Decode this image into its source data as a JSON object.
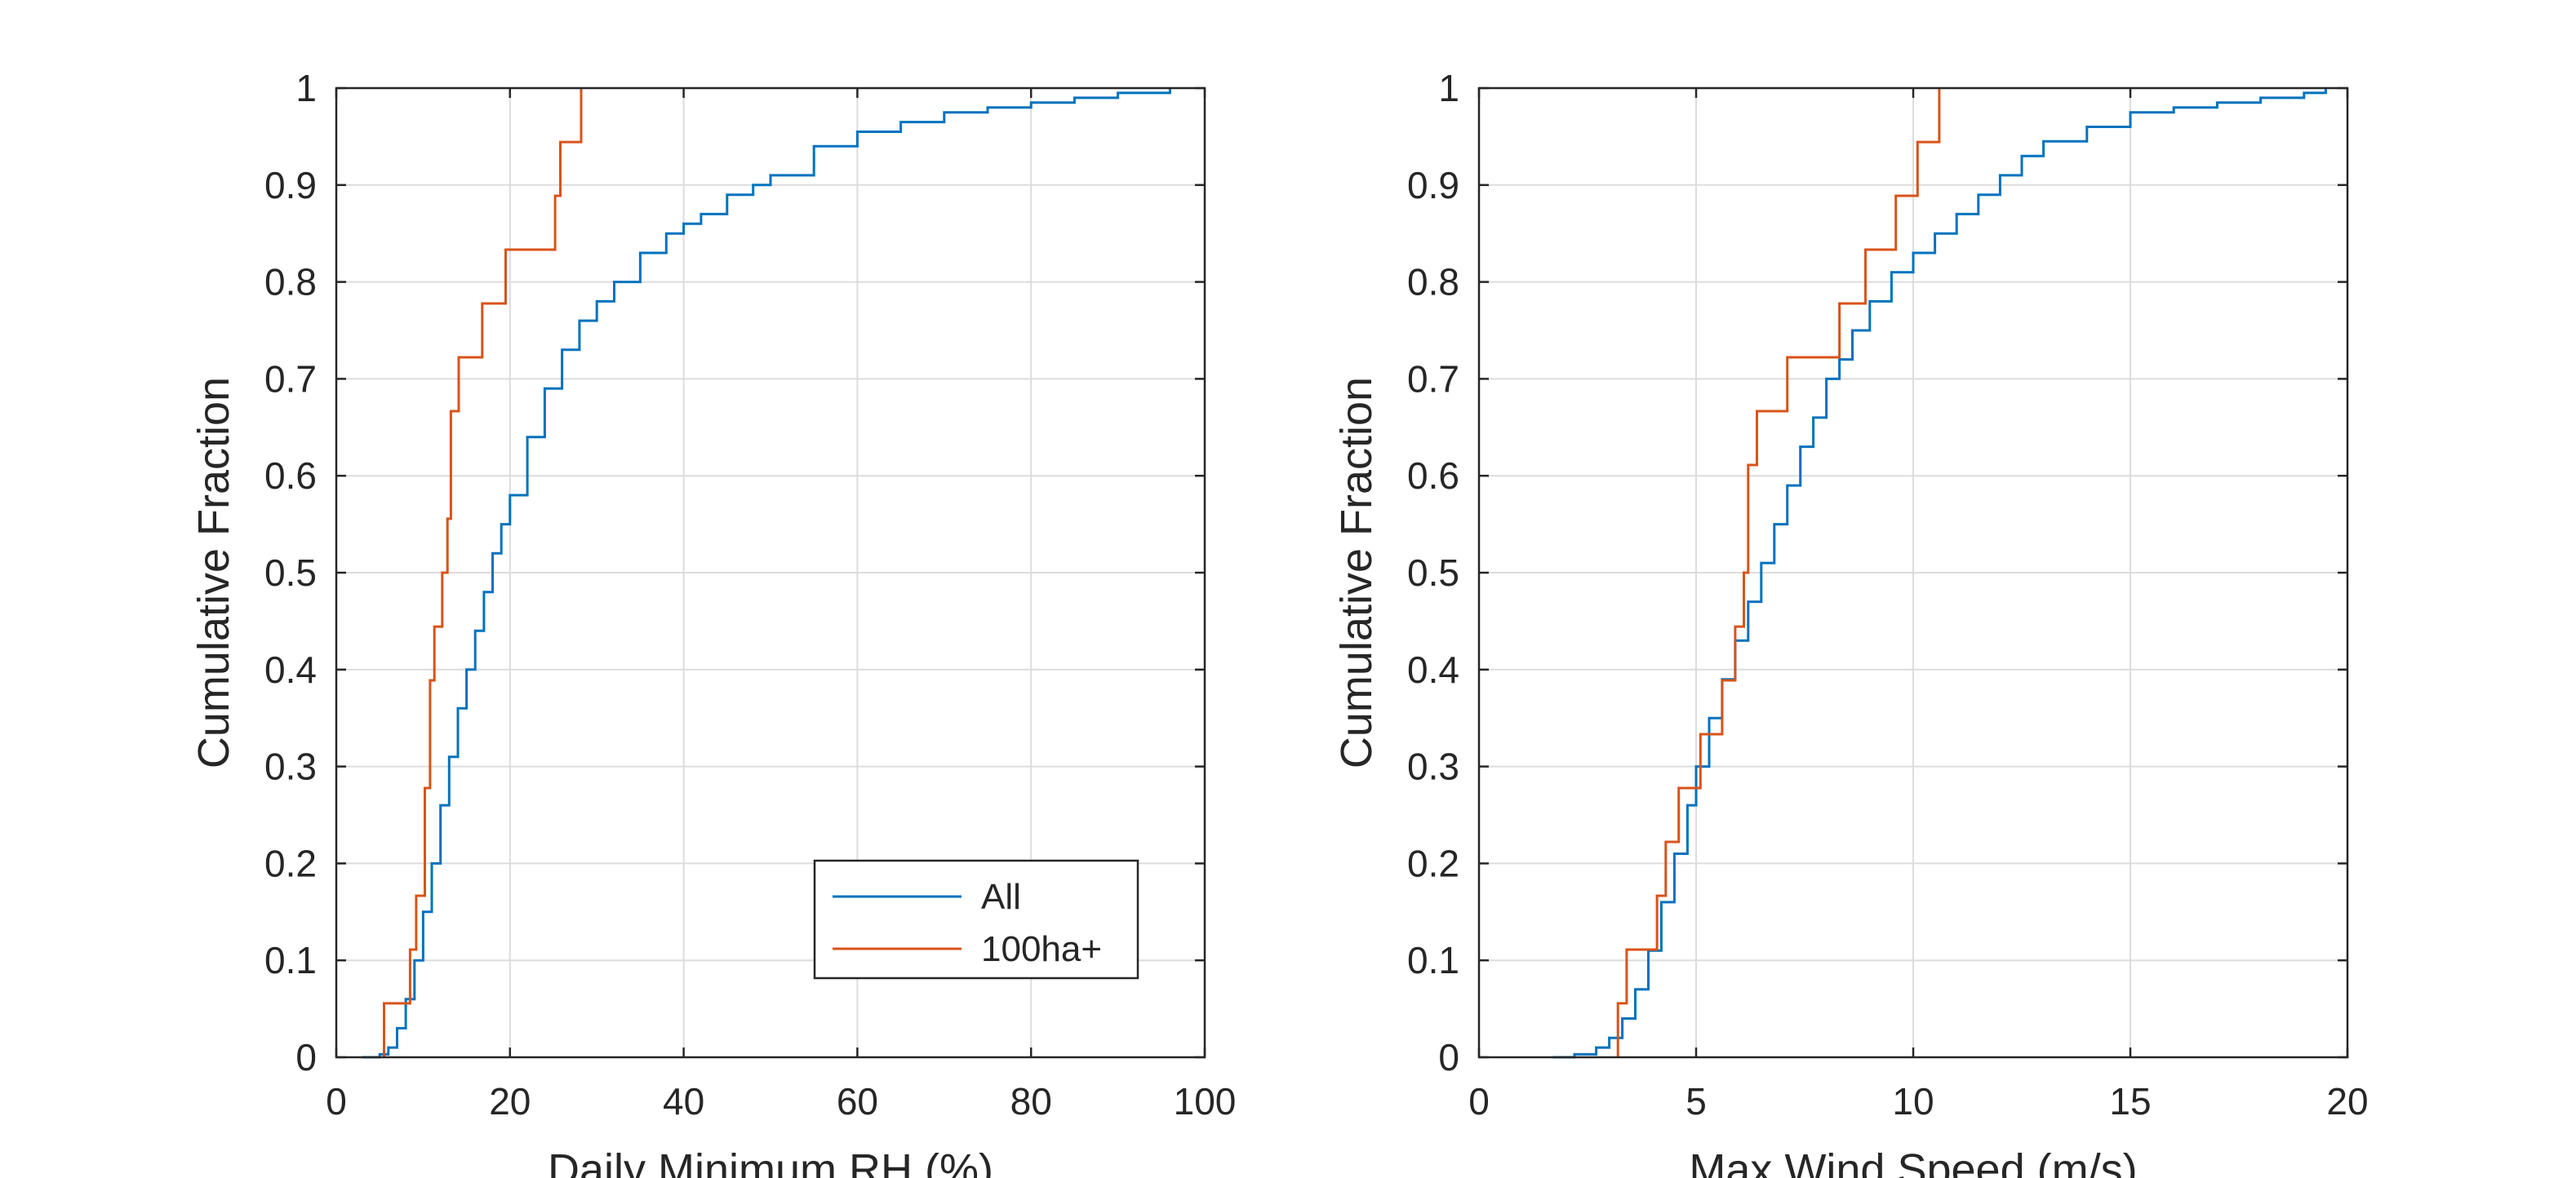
{
  "figure": {
    "background": "#ffffff"
  },
  "chart_data": [
    {
      "type": "line",
      "subtype": "empirical-cdf-stairs",
      "xlabel": "Daily Minimum RH (%)",
      "ylabel": "Cumulative Fraction",
      "xlim": [
        0,
        100
      ],
      "ylim": [
        0,
        1
      ],
      "xticks": [
        0,
        20,
        40,
        60,
        80,
        100
      ],
      "yticks": [
        0,
        0.1,
        0.2,
        0.3,
        0.4,
        0.5,
        0.6,
        0.7,
        0.8,
        0.9,
        1
      ],
      "grid": true,
      "legend": {
        "location": "bottom-right",
        "entries": [
          "All",
          "100ha+"
        ]
      },
      "series": [
        {
          "name": "All",
          "color": "#0072BD",
          "x": [
            3,
            5,
            6,
            7,
            8,
            9,
            10,
            11,
            12,
            13,
            14,
            15,
            16,
            17,
            18,
            19,
            20,
            22,
            24,
            26,
            28,
            30,
            32,
            35,
            38,
            40,
            42,
            45,
            48,
            50,
            55,
            60,
            65,
            70,
            75,
            80,
            85,
            90,
            96
          ],
          "y": [
            0,
            0.003,
            0.01,
            0.03,
            0.06,
            0.1,
            0.15,
            0.2,
            0.26,
            0.31,
            0.36,
            0.4,
            0.44,
            0.48,
            0.52,
            0.55,
            0.58,
            0.64,
            0.69,
            0.73,
            0.76,
            0.78,
            0.8,
            0.83,
            0.85,
            0.86,
            0.87,
            0.89,
            0.9,
            0.91,
            0.94,
            0.955,
            0.965,
            0.975,
            0.98,
            0.985,
            0.99,
            0.995,
            1
          ]
        },
        {
          "name": "100ha+",
          "color": "#D95319",
          "x": [
            5.5,
            8.5,
            9.2,
            10.2,
            10.8,
            11.3,
            12.2,
            12.8,
            13.2,
            14.1,
            16.8,
            19.5,
            20.2,
            25.2,
            25.8,
            28.2
          ],
          "y": [
            0.0556,
            0.1111,
            0.1667,
            0.2778,
            0.3889,
            0.4444,
            0.5,
            0.5556,
            0.6667,
            0.7222,
            0.7778,
            0.8333,
            0.8333,
            0.8889,
            0.9444,
            1
          ]
        }
      ]
    },
    {
      "type": "line",
      "subtype": "empirical-cdf-stairs",
      "xlabel": "Max Wind Speed (m/s)",
      "ylabel": "Cumulative Fraction",
      "xlim": [
        0,
        20
      ],
      "ylim": [
        0,
        1
      ],
      "xticks": [
        0,
        5,
        10,
        15,
        20
      ],
      "yticks": [
        0,
        0.1,
        0.2,
        0.3,
        0.4,
        0.5,
        0.6,
        0.7,
        0.8,
        0.9,
        1
      ],
      "grid": true,
      "legend": null,
      "series": [
        {
          "name": "All",
          "color": "#0072BD",
          "x": [
            1.7,
            2.2,
            2.7,
            3.0,
            3.3,
            3.6,
            3.9,
            4.2,
            4.5,
            4.8,
            5.0,
            5.3,
            5.6,
            5.9,
            6.2,
            6.5,
            6.8,
            7.1,
            7.4,
            7.7,
            8.0,
            8.3,
            8.6,
            9.0,
            9.5,
            10.0,
            10.5,
            11.0,
            11.5,
            12.0,
            12.5,
            13.0,
            14.0,
            15.0,
            16.0,
            17.0,
            18.0,
            19.0,
            19.5
          ],
          "y": [
            0,
            0.003,
            0.01,
            0.02,
            0.04,
            0.07,
            0.11,
            0.16,
            0.21,
            0.26,
            0.3,
            0.35,
            0.39,
            0.43,
            0.47,
            0.51,
            0.55,
            0.59,
            0.63,
            0.66,
            0.7,
            0.72,
            0.75,
            0.78,
            0.81,
            0.83,
            0.85,
            0.87,
            0.89,
            0.91,
            0.93,
            0.945,
            0.96,
            0.975,
            0.98,
            0.985,
            0.99,
            0.995,
            1
          ]
        },
        {
          "name": "100ha+",
          "color": "#D95319",
          "x": [
            3.2,
            3.4,
            4.1,
            4.3,
            4.6,
            5.1,
            5.6,
            5.9,
            6.1,
            6.2,
            6.4,
            7.1,
            8.3,
            8.9,
            9.6,
            10.1,
            10.6
          ],
          "y": [
            0.0556,
            0.1111,
            0.1667,
            0.2222,
            0.2778,
            0.3333,
            0.3889,
            0.4444,
            0.5,
            0.6111,
            0.6667,
            0.7222,
            0.7778,
            0.8333,
            0.8889,
            0.9444,
            1
          ]
        }
      ]
    }
  ]
}
